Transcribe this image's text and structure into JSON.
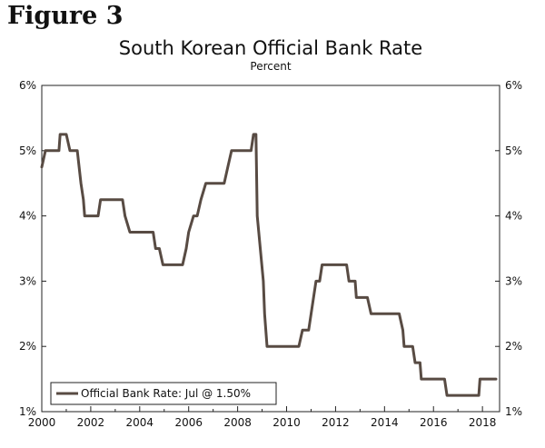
{
  "figure_label": "Figure 3",
  "chart_data": {
    "type": "line",
    "title": "South Korean Official Bank Rate",
    "subtitle": "Percent",
    "xlabel": "",
    "ylabel": "",
    "xlim": [
      2000,
      2018.7
    ],
    "ylim": [
      1,
      6
    ],
    "x_ticks": [
      2000,
      2002,
      2004,
      2006,
      2008,
      2010,
      2012,
      2014,
      2016,
      2018
    ],
    "y_ticks": [
      1,
      2,
      3,
      4,
      5,
      6
    ],
    "y_tick_labels": [
      "1%",
      "2%",
      "3%",
      "4%",
      "5%",
      "6%"
    ],
    "grid": false,
    "legend_position": "bottom-left",
    "series": [
      {
        "name": "Official Bank Rate: Jul @ 1.50%",
        "color": "#584b43",
        "points": [
          [
            2000.0,
            4.75
          ],
          [
            2000.15,
            5.0
          ],
          [
            2000.7,
            5.0
          ],
          [
            2000.75,
            5.25
          ],
          [
            2001.0,
            5.25
          ],
          [
            2001.15,
            5.0
          ],
          [
            2001.45,
            5.0
          ],
          [
            2001.6,
            4.5
          ],
          [
            2001.7,
            4.25
          ],
          [
            2001.75,
            4.0
          ],
          [
            2002.3,
            4.0
          ],
          [
            2002.4,
            4.25
          ],
          [
            2003.3,
            4.25
          ],
          [
            2003.4,
            4.0
          ],
          [
            2003.6,
            3.75
          ],
          [
            2004.55,
            3.75
          ],
          [
            2004.65,
            3.5
          ],
          [
            2004.8,
            3.5
          ],
          [
            2004.95,
            3.25
          ],
          [
            2005.75,
            3.25
          ],
          [
            2005.9,
            3.5
          ],
          [
            2006.0,
            3.75
          ],
          [
            2006.2,
            4.0
          ],
          [
            2006.35,
            4.0
          ],
          [
            2006.5,
            4.25
          ],
          [
            2006.7,
            4.5
          ],
          [
            2007.45,
            4.5
          ],
          [
            2007.6,
            4.75
          ],
          [
            2007.75,
            5.0
          ],
          [
            2008.55,
            5.0
          ],
          [
            2008.65,
            5.25
          ],
          [
            2008.75,
            5.25
          ],
          [
            2008.8,
            4.0
          ],
          [
            2009.05,
            3.0
          ],
          [
            2009.1,
            2.5
          ],
          [
            2009.2,
            2.0
          ],
          [
            2010.5,
            2.0
          ],
          [
            2010.65,
            2.25
          ],
          [
            2010.9,
            2.25
          ],
          [
            2011.0,
            2.5
          ],
          [
            2011.2,
            3.0
          ],
          [
            2011.35,
            3.0
          ],
          [
            2011.45,
            3.25
          ],
          [
            2012.45,
            3.25
          ],
          [
            2012.55,
            3.0
          ],
          [
            2012.8,
            3.0
          ],
          [
            2012.85,
            2.75
          ],
          [
            2013.3,
            2.75
          ],
          [
            2013.45,
            2.5
          ],
          [
            2014.6,
            2.5
          ],
          [
            2014.75,
            2.25
          ],
          [
            2014.8,
            2.0
          ],
          [
            2015.15,
            2.0
          ],
          [
            2015.25,
            1.75
          ],
          [
            2015.45,
            1.75
          ],
          [
            2015.5,
            1.5
          ],
          [
            2016.45,
            1.5
          ],
          [
            2016.55,
            1.25
          ],
          [
            2017.85,
            1.25
          ],
          [
            2017.9,
            1.5
          ],
          [
            2018.55,
            1.5
          ]
        ]
      }
    ]
  }
}
